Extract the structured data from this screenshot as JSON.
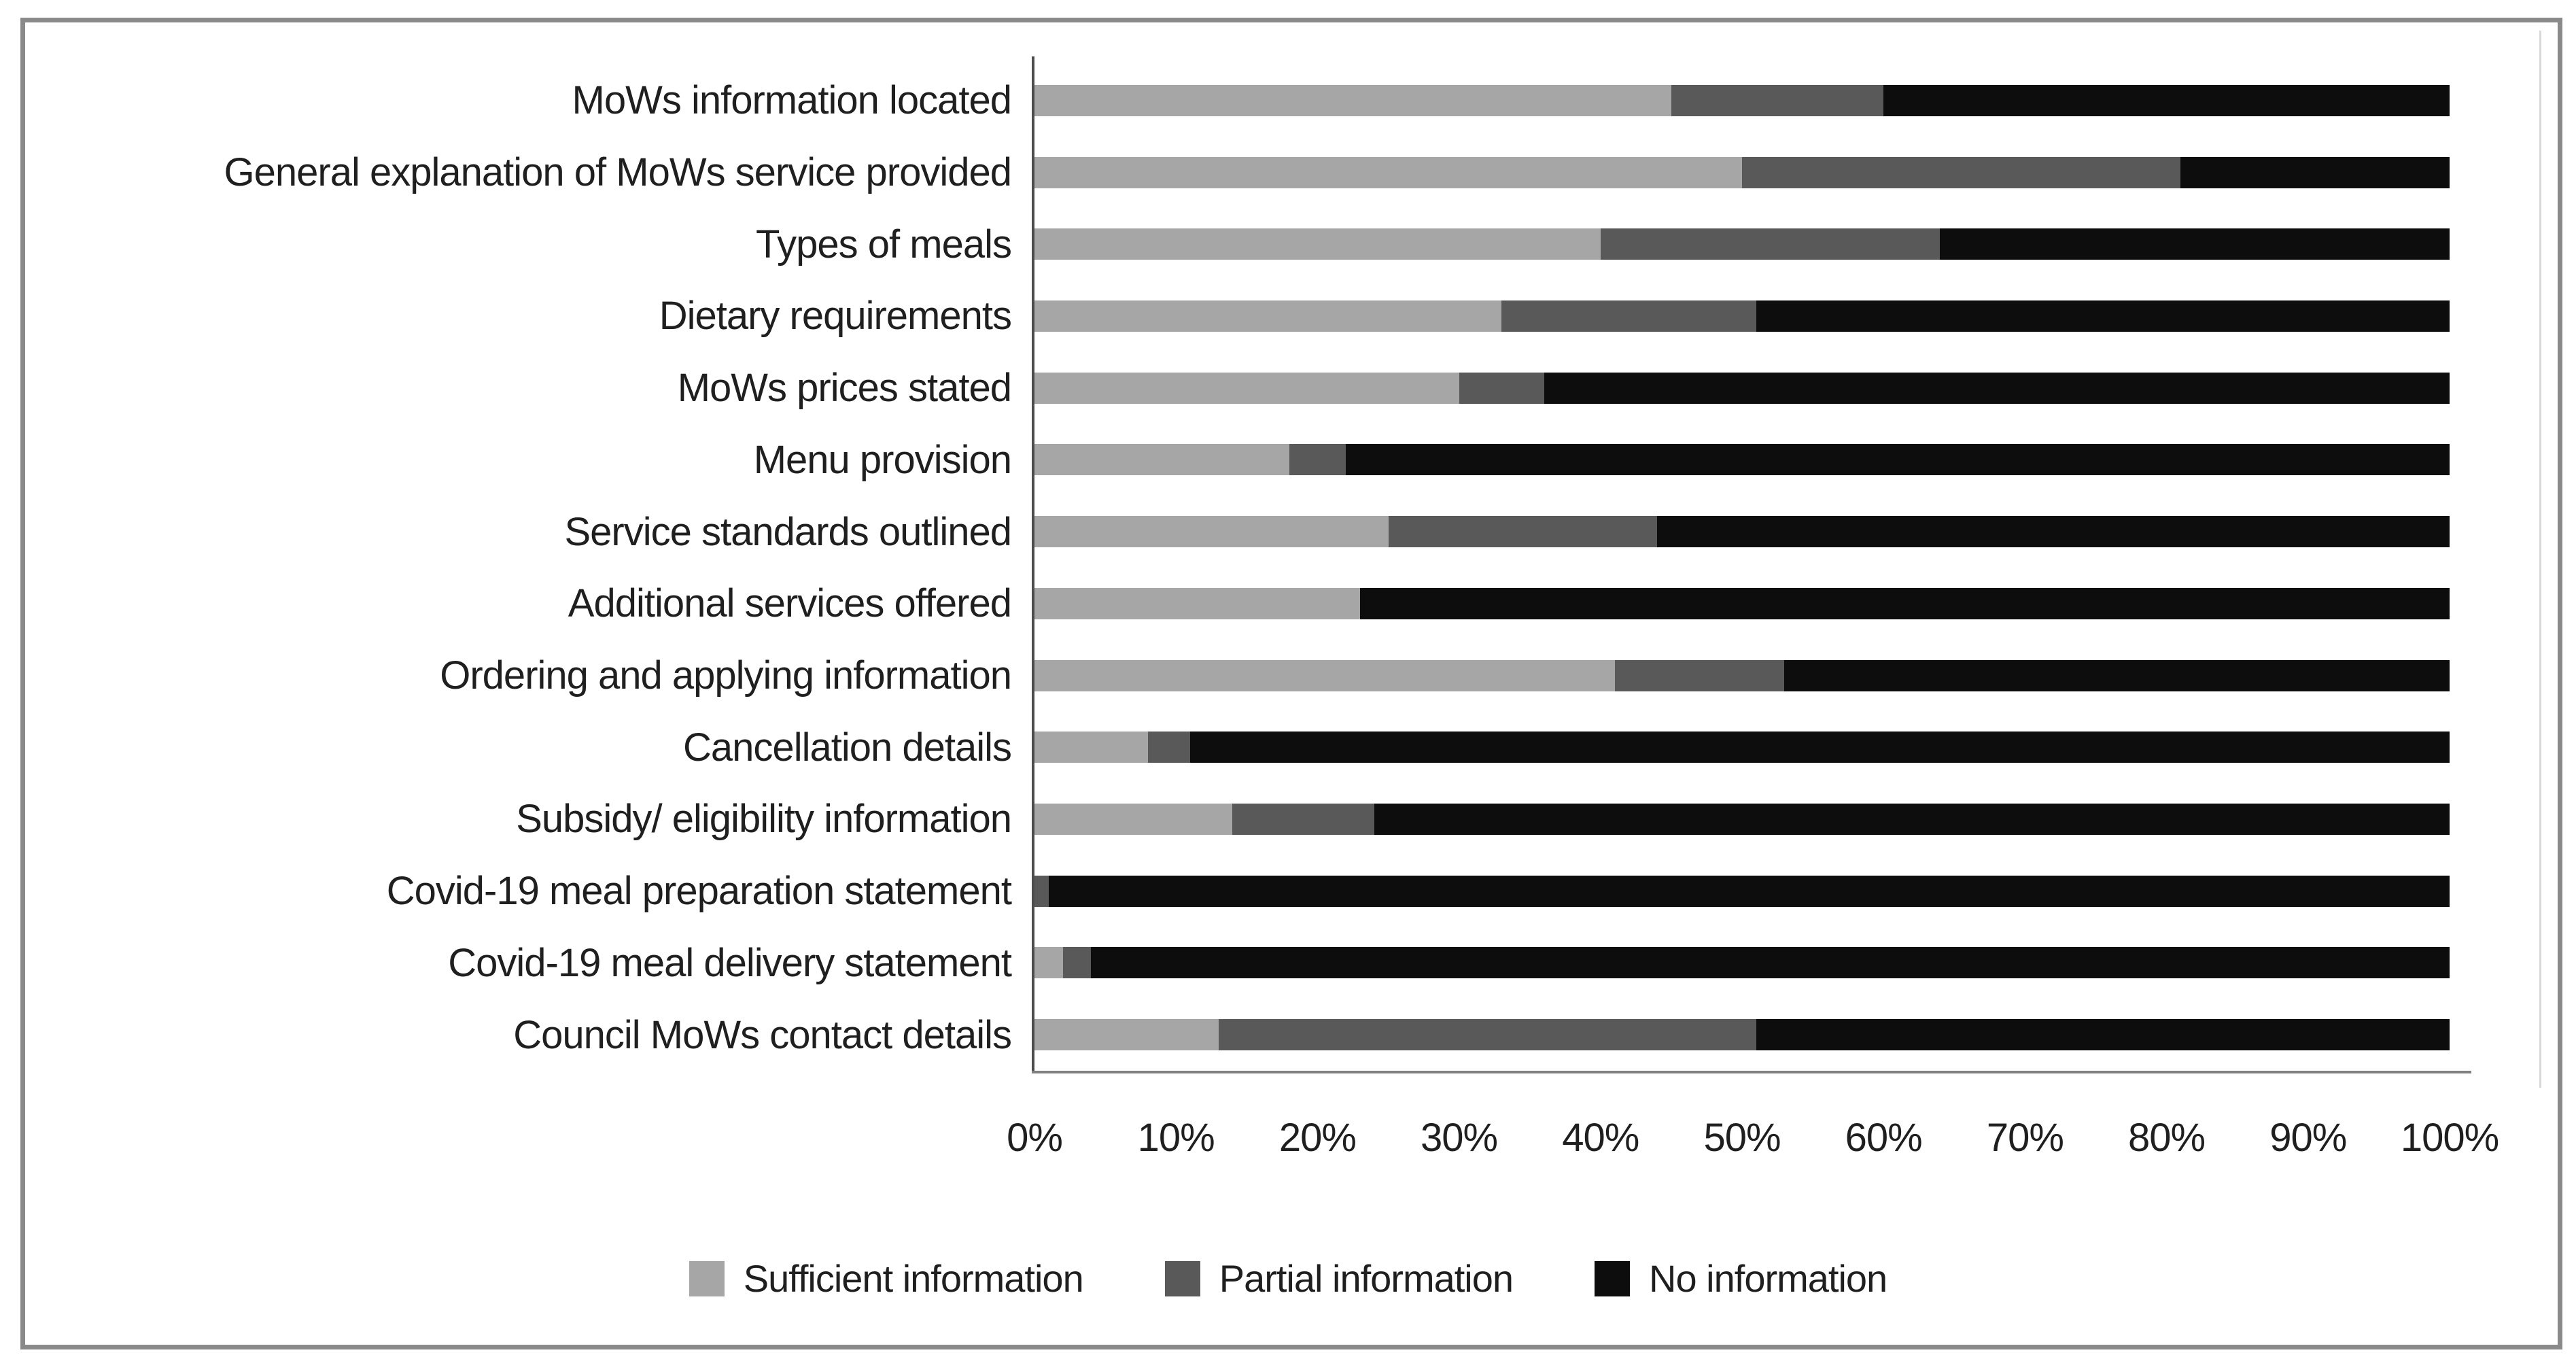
{
  "chart_data": {
    "type": "bar",
    "orientation": "horizontal",
    "stacked": true,
    "unit": "percent",
    "title": "",
    "xlabel": "",
    "ylabel": "",
    "grid": false,
    "legend_position": "bottom",
    "categories": [
      "MoWs information located",
      "General explanation of MoWs service provided",
      "Types of meals",
      "Dietary requirements",
      "MoWs prices stated",
      "Menu provision",
      "Service standards outlined",
      "Additional services offered",
      "Ordering and applying information",
      "Cancellation details",
      "Subsidy/ eligibility information",
      "Covid-19 meal preparation statement",
      "Covid-19 meal delivery statement",
      "Council MoWs contact details"
    ],
    "series": [
      {
        "name": "Sufficient information",
        "color": "#a6a6a6",
        "values": [
          45,
          50,
          40,
          33,
          30,
          18,
          25,
          23,
          41,
          8,
          14,
          0,
          2,
          13
        ]
      },
      {
        "name": "Partial information",
        "color": "#595959",
        "values": [
          15,
          31,
          24,
          18,
          6,
          4,
          19,
          0,
          12,
          3,
          10,
          1,
          2,
          38
        ]
      },
      {
        "name": "No information",
        "color": "#0d0d0d",
        "values": [
          40,
          19,
          36,
          49,
          64,
          78,
          56,
          77,
          47,
          89,
          76,
          99,
          96,
          49
        ]
      }
    ],
    "x_axis": {
      "min": 0,
      "max": 100,
      "tick_step": 10,
      "ticks": [
        "0%",
        "10%",
        "20%",
        "30%",
        "40%",
        "50%",
        "60%",
        "70%",
        "80%",
        "90%",
        "100%"
      ]
    }
  }
}
